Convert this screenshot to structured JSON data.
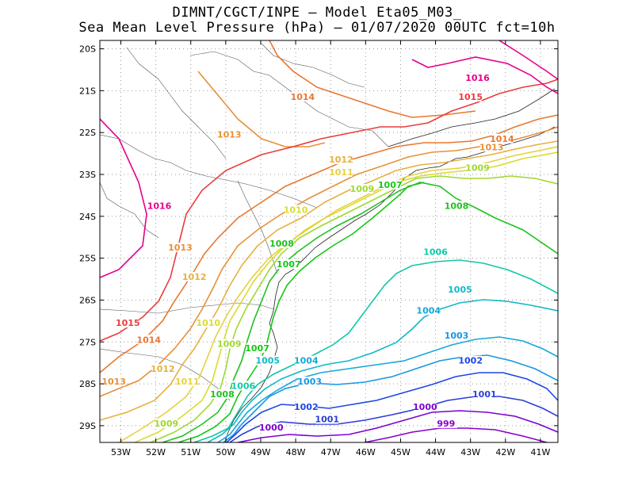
{
  "title_line1": "DIMNT/CGCT/INPE –  Model Eta05_M03_",
  "title_line2": "Sea Mean Level Pressure (hPa) – 01/07/2020 00UTC fct=10h",
  "lat_ticks": [
    "20S",
    "21S",
    "22S",
    "23S",
    "24S",
    "25S",
    "26S",
    "27S",
    "28S",
    "29S"
  ],
  "lon_ticks": [
    "53W",
    "52W",
    "51W",
    "50W",
    "49W",
    "48W",
    "47W",
    "46W",
    "45W",
    "44W",
    "43W",
    "42W",
    "41W"
  ],
  "chart_data": {
    "type": "contour",
    "variable": "Sea Mean Level Pressure (hPa)",
    "lon_range": [
      -53.6,
      -40.5
    ],
    "lat_range": [
      -29.4,
      -19.8
    ],
    "grid": "dotted",
    "contour_levels": [
      999,
      1000,
      1001,
      1002,
      1003,
      1004,
      1005,
      1006,
      1007,
      1008,
      1009,
      1010,
      1011,
      1012,
      1013,
      1014,
      1015,
      1016
    ],
    "level_colors": {
      "999": "#8a00c8",
      "1000": "#7b00d0",
      "1001": "#2d3cd8",
      "1002": "#1e46e6",
      "1003": "#1896e0",
      "1004": "#14a8d8",
      "1005": "#10b8c8",
      "1006": "#10c8a8",
      "1007": "#14c814",
      "1008": "#20c020",
      "1009": "#a0d830",
      "1010": "#d8dc30",
      "1011": "#e6d040",
      "1012": "#e6b040",
      "1013": "#e89038",
      "1014": "#e87830",
      "1015": "#ea3c3c",
      "1016": "#e6008c"
    },
    "contour_labels": [
      {
        "text": "1016",
        "lon": -42.8,
        "lat": -20.75
      },
      {
        "text": "1015",
        "lon": -43.0,
        "lat": -21.2
      },
      {
        "text": "1014",
        "lon": -47.8,
        "lat": -21.2
      },
      {
        "text": "1013",
        "lon": -49.9,
        "lat": -22.1
      },
      {
        "text": "1016",
        "lon": -51.9,
        "lat": -23.8
      },
      {
        "text": "1014",
        "lon": -42.1,
        "lat": -22.2
      },
      {
        "text": "1013",
        "lon": -42.4,
        "lat": -22.4
      },
      {
        "text": "1012",
        "lon": -46.7,
        "lat": -22.7
      },
      {
        "text": "1011",
        "lon": -46.7,
        "lat": -23.0
      },
      {
        "text": "1009",
        "lon": -42.8,
        "lat": -22.9
      },
      {
        "text": "1009",
        "lon": -46.1,
        "lat": -23.4
      },
      {
        "text": "1007",
        "lon": -45.3,
        "lat": -23.3
      },
      {
        "text": "1008",
        "lon": -43.4,
        "lat": -23.8
      },
      {
        "text": "1010",
        "lon": -48.0,
        "lat": -23.9
      },
      {
        "text": "1013",
        "lon": -51.3,
        "lat": -24.8
      },
      {
        "text": "1008",
        "lon": -48.4,
        "lat": -24.7
      },
      {
        "text": "1007",
        "lon": -48.2,
        "lat": -25.2
      },
      {
        "text": "1006",
        "lon": -44.0,
        "lat": -24.9
      },
      {
        "text": "1012",
        "lon": -50.9,
        "lat": -25.5
      },
      {
        "text": "1005",
        "lon": -43.3,
        "lat": -25.8
      },
      {
        "text": "1004",
        "lon": -44.2,
        "lat": -26.3
      },
      {
        "text": "1015",
        "lon": -52.8,
        "lat": -26.6
      },
      {
        "text": "1010",
        "lon": -50.5,
        "lat": -26.6
      },
      {
        "text": "1003",
        "lon": -43.4,
        "lat": -26.9
      },
      {
        "text": "1014",
        "lon": -52.2,
        "lat": -27.0
      },
      {
        "text": "1009",
        "lon": -49.9,
        "lat": -27.1
      },
      {
        "text": "1007",
        "lon": -49.1,
        "lat": -27.2
      },
      {
        "text": "1005",
        "lon": -48.8,
        "lat": -27.5
      },
      {
        "text": "1004",
        "lon": -47.7,
        "lat": -27.5
      },
      {
        "text": "1002",
        "lon": -43.0,
        "lat": -27.5
      },
      {
        "text": "1012",
        "lon": -51.8,
        "lat": -27.7
      },
      {
        "text": "1013",
        "lon": -53.2,
        "lat": -28.0
      },
      {
        "text": "1011",
        "lon": -51.1,
        "lat": -28.0
      },
      {
        "text": "1006",
        "lon": -49.5,
        "lat": -28.1
      },
      {
        "text": "1003",
        "lon": -47.6,
        "lat": -28.0
      },
      {
        "text": "1008",
        "lon": -50.1,
        "lat": -28.3
      },
      {
        "text": "1001",
        "lon": -42.6,
        "lat": -28.3
      },
      {
        "text": "1002",
        "lon": -47.7,
        "lat": -28.6
      },
      {
        "text": "1000",
        "lon": -44.3,
        "lat": -28.6
      },
      {
        "text": "1009",
        "lon": -51.7,
        "lat": -29.0
      },
      {
        "text": "1001",
        "lon": -47.1,
        "lat": -28.9
      },
      {
        "text": "999",
        "lon": -43.7,
        "lat": -29.0
      },
      {
        "text": "1000",
        "lon": -48.7,
        "lat": -29.1
      }
    ]
  }
}
